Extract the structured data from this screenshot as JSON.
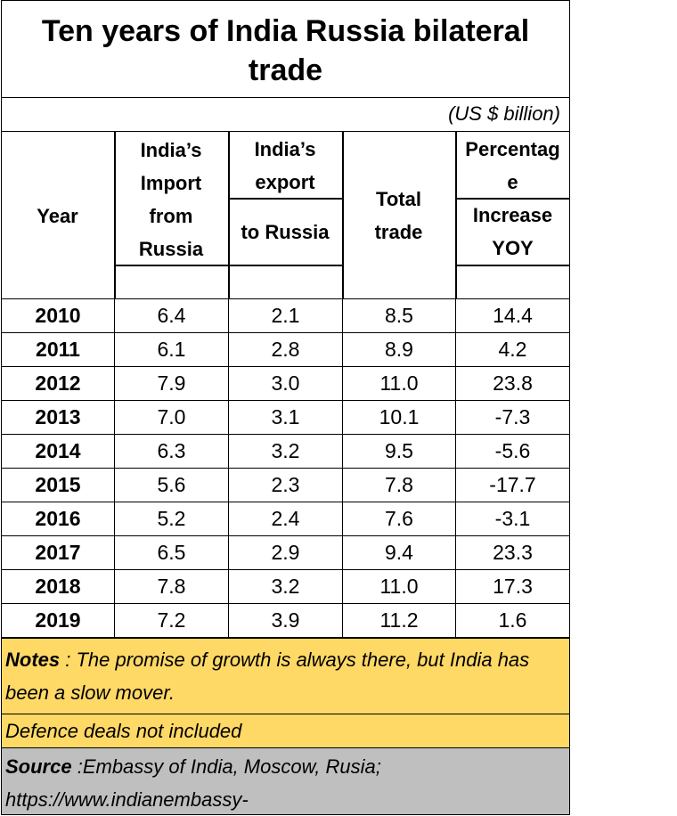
{
  "chart_data": {
    "type": "table",
    "title_line1": "Ten years of India Russia bilateral",
    "title_line2": "trade",
    "unit": "(US $ billion)",
    "headers": {
      "year": "Year",
      "import_1": "India’s",
      "import_2": "Import",
      "import_3": "from",
      "import_4": "Russia",
      "export_1": "India’s",
      "export_2": "export",
      "export_3": "to Russia",
      "total_1": "Total",
      "total_2": "trade",
      "pct_1": "Percentag",
      "pct_2": "e",
      "pct_3": "Increase",
      "pct_4": "YOY"
    },
    "rows": [
      {
        "year": "2010",
        "import": "6.4",
        "export": "2.1",
        "total": "8.5",
        "pct": "14.4"
      },
      {
        "year": "2011",
        "import": "6.1",
        "export": "2.8",
        "total": "8.9",
        "pct": "4.2"
      },
      {
        "year": "2012",
        "import": "7.9",
        "export": "3.0",
        "total": "11.0",
        "pct": "23.8"
      },
      {
        "year": "2013",
        "import": "7.0",
        "export": "3.1",
        "total": "10.1",
        "pct": "-7.3"
      },
      {
        "year": "2014",
        "import": "6.3",
        "export": "3.2",
        "total": "9.5",
        "pct": "-5.6"
      },
      {
        "year": "2015",
        "import": "5.6",
        "export": "2.3",
        "total": "7.8",
        "pct": "-17.7"
      },
      {
        "year": "2016",
        "import": "5.2",
        "export": "2.4",
        "total": "7.6",
        "pct": "-3.1"
      },
      {
        "year": "2017",
        "import": "6.5",
        "export": "2.9",
        "total": "9.4",
        "pct": "23.3"
      },
      {
        "year": "2018",
        "import": "7.8",
        "export": "3.2",
        "total": "11.0",
        "pct": "17.3"
      },
      {
        "year": "2019",
        "import": "7.2",
        "export": "3.9",
        "total": "11.2",
        "pct": "1.6"
      }
    ],
    "notes_label": "Notes",
    "notes_text": " : The promise of growth is always there, but India has been a slow mover.",
    "defence_text": "Defence deals not included",
    "source_label": "Source",
    "source_text": " :Embassy of India, Moscow, Rusia; https://www.indianembassy-"
  },
  "colors": {
    "notes_bg": "#ffd966",
    "source_bg": "#bfbfbf",
    "grid": "#000000"
  }
}
